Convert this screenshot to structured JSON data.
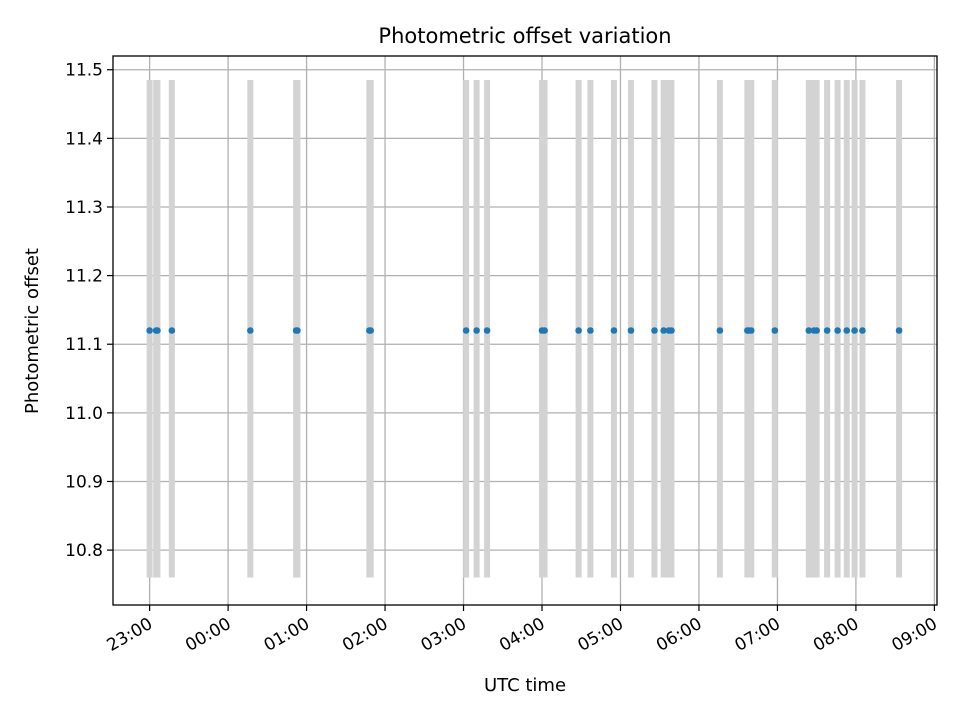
{
  "chart_data": {
    "type": "scatter",
    "title": "Photometric offset variation",
    "xlabel": "UTC time",
    "ylabel": "Photometric offset",
    "x_ticks": [
      "23:00",
      "00:00",
      "01:00",
      "02:00",
      "03:00",
      "04:00",
      "05:00",
      "06:00",
      "07:00",
      "08:00",
      "09:00"
    ],
    "y_ticks": [
      "10.8",
      "10.9",
      "11.0",
      "11.1",
      "11.2",
      "11.3",
      "11.4",
      "11.5"
    ],
    "xlim": [
      "22:32",
      "09:02"
    ],
    "ylim": [
      10.72,
      11.52
    ],
    "grid": true,
    "point_color": "#1f77b4",
    "bar_color": "#d3d3d3",
    "bar_ymin": 10.76,
    "bar_ymax": 11.485,
    "x": [
      "23:00",
      "23:05",
      "23:06",
      "23:17",
      "00:17",
      "00:52",
      "00:53",
      "01:48",
      "01:49",
      "03:02",
      "03:10",
      "03:18",
      "04:00",
      "04:02",
      "04:28",
      "04:37",
      "04:55",
      "05:08",
      "05:26",
      "05:33",
      "05:37",
      "05:39",
      "06:16",
      "06:37",
      "06:38",
      "06:40",
      "06:58",
      "07:24",
      "07:28",
      "07:30",
      "07:38",
      "07:46",
      "07:53",
      "07:59",
      "08:05",
      "08:33"
    ],
    "y": [
      11.12,
      11.12,
      11.12,
      11.12,
      11.12,
      11.12,
      11.12,
      11.12,
      11.12,
      11.12,
      11.12,
      11.12,
      11.12,
      11.12,
      11.12,
      11.12,
      11.12,
      11.12,
      11.12,
      11.12,
      11.12,
      11.12,
      11.12,
      11.12,
      11.12,
      11.12,
      11.12,
      11.12,
      11.12,
      11.12,
      11.12,
      11.12,
      11.12,
      11.12,
      11.12,
      11.12
    ]
  }
}
